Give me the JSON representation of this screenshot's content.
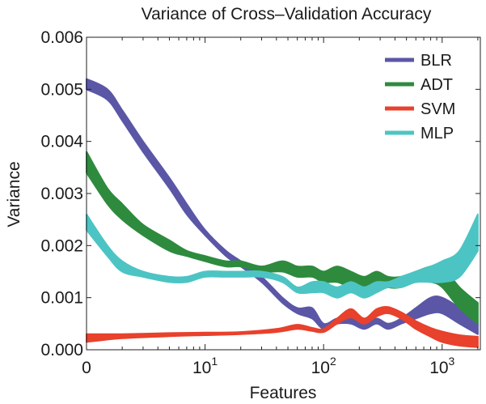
{
  "chart_data": {
    "type": "line",
    "title": "Variance of Cross–Validation Accuracy",
    "xlabel": "Features",
    "ylabel": "Variance",
    "xscale": "log",
    "xlim": [
      1,
      2100
    ],
    "ylim": [
      0,
      0.006
    ],
    "y_ticks": [
      {
        "value": 0,
        "label": "0.000"
      },
      {
        "value": 0.001,
        "label": "0.001"
      },
      {
        "value": 0.002,
        "label": "0.002"
      },
      {
        "value": 0.003,
        "label": "0.003"
      },
      {
        "value": 0.004,
        "label": "0.004"
      },
      {
        "value": 0.005,
        "label": "0.005"
      },
      {
        "value": 0.006,
        "label": "0.006"
      }
    ],
    "x_ticks": [
      {
        "value": 1,
        "base": "0",
        "exp": ""
      },
      {
        "value": 10,
        "base": "10",
        "exp": "1"
      },
      {
        "value": 100,
        "base": "10",
        "exp": "2"
      },
      {
        "value": 1000,
        "base": "10",
        "exp": "3"
      }
    ],
    "legend_position": "top-right",
    "series": [
      {
        "name": "BLR",
        "color": "#5b57a6",
        "x": [
          1,
          1.5,
          2,
          3,
          5,
          7,
          10,
          15,
          20,
          30,
          45,
          60,
          80,
          100,
          130,
          170,
          220,
          280,
          350,
          450,
          600,
          800,
          1000,
          1400,
          2000
        ],
        "upper": [
          0.0052,
          0.005,
          0.0046,
          0.004,
          0.0033,
          0.0028,
          0.0023,
          0.0019,
          0.0017,
          0.0014,
          0.001,
          0.0008,
          0.0008,
          0.0005,
          0.0006,
          0.0006,
          0.0005,
          0.0006,
          0.0005,
          0.0006,
          0.0008,
          0.001,
          0.001,
          0.0008,
          0.0005
        ],
        "lower": [
          0.005,
          0.0048,
          0.0044,
          0.0038,
          0.0031,
          0.0026,
          0.0022,
          0.0018,
          0.0016,
          0.0013,
          0.0009,
          0.0007,
          0.0006,
          0.0004,
          0.0005,
          0.0005,
          0.0004,
          0.0005,
          0.0004,
          0.0005,
          0.0006,
          0.0007,
          0.0007,
          0.0005,
          0.0003
        ]
      },
      {
        "name": "ADT",
        "color": "#2e8b3e",
        "x": [
          1,
          1.5,
          2,
          3,
          5,
          7,
          10,
          15,
          20,
          30,
          45,
          60,
          80,
          100,
          130,
          170,
          220,
          280,
          350,
          450,
          600,
          800,
          1000,
          1400,
          2000
        ],
        "upper": [
          0.0038,
          0.0031,
          0.0028,
          0.0024,
          0.0021,
          0.0019,
          0.0018,
          0.0017,
          0.0017,
          0.0016,
          0.0017,
          0.0016,
          0.0016,
          0.0015,
          0.0016,
          0.0015,
          0.0014,
          0.0015,
          0.0014,
          0.0014,
          0.0015,
          0.0016,
          0.0016,
          0.0012,
          0.0009
        ],
        "lower": [
          0.0034,
          0.0028,
          0.0025,
          0.0022,
          0.0019,
          0.0018,
          0.0017,
          0.0016,
          0.0016,
          0.0015,
          0.0015,
          0.0014,
          0.0014,
          0.0013,
          0.0013,
          0.0012,
          0.0012,
          0.0013,
          0.0012,
          0.0012,
          0.0013,
          0.0013,
          0.0012,
          0.0008,
          0.0005
        ]
      },
      {
        "name": "SVM",
        "color": "#e8412c",
        "x": [
          1,
          2,
          5,
          10,
          20,
          40,
          60,
          80,
          100,
          130,
          170,
          220,
          280,
          350,
          450,
          600,
          800,
          1000,
          1400,
          2000
        ],
        "upper": [
          0.0003,
          0.0003,
          0.00032,
          0.00033,
          0.00034,
          0.0004,
          0.00048,
          0.00042,
          0.0004,
          0.0006,
          0.00078,
          0.0006,
          0.00078,
          0.00082,
          0.00072,
          0.00055,
          0.00042,
          0.00035,
          0.00028,
          0.00025
        ],
        "lower": [
          0.00015,
          0.00022,
          0.00026,
          0.00028,
          0.0003,
          0.00034,
          0.0004,
          0.00036,
          0.00034,
          0.0005,
          0.00062,
          0.0005,
          0.00064,
          0.0007,
          0.0006,
          0.0004,
          0.00025,
          0.00015,
          8e-05,
          5e-05
        ]
      },
      {
        "name": "MLP",
        "color": "#4dc4c4",
        "x": [
          1,
          1.5,
          2,
          3,
          5,
          7,
          10,
          15,
          20,
          30,
          45,
          60,
          80,
          100,
          130,
          170,
          220,
          280,
          350,
          450,
          600,
          800,
          1000,
          1400,
          2000
        ],
        "upper": [
          0.0026,
          0.002,
          0.0017,
          0.0015,
          0.0014,
          0.0014,
          0.0015,
          0.0015,
          0.0015,
          0.0015,
          0.0014,
          0.0012,
          0.0013,
          0.0013,
          0.0012,
          0.0013,
          0.0012,
          0.0013,
          0.0013,
          0.0014,
          0.0015,
          0.0016,
          0.0017,
          0.0019,
          0.0026
        ],
        "lower": [
          0.0023,
          0.0018,
          0.0015,
          0.0014,
          0.0013,
          0.0013,
          0.0014,
          0.0014,
          0.0014,
          0.0014,
          0.0013,
          0.0011,
          0.0011,
          0.0011,
          0.001,
          0.0011,
          0.001,
          0.0011,
          0.0012,
          0.0012,
          0.0013,
          0.0013,
          0.0013,
          0.0014,
          0.0019
        ]
      }
    ]
  }
}
